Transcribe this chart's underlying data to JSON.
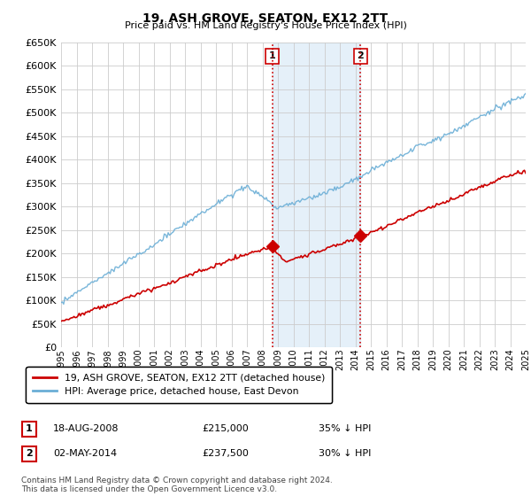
{
  "title": "19, ASH GROVE, SEATON, EX12 2TT",
  "subtitle": "Price paid vs. HM Land Registry's House Price Index (HPI)",
  "ytick_values": [
    0,
    50000,
    100000,
    150000,
    200000,
    250000,
    300000,
    350000,
    400000,
    450000,
    500000,
    550000,
    600000,
    650000
  ],
  "x_start_year": 1995,
  "x_end_year": 2025,
  "hpi_color": "#6aaed6",
  "price_color": "#cc0000",
  "marker1_date_label": "18-AUG-2008",
  "marker1_price": 215000,
  "marker1_pct": "35% ↓ HPI",
  "marker1_x": 2008.63,
  "marker2_date_label": "02-MAY-2014",
  "marker2_price": 237500,
  "marker2_pct": "30% ↓ HPI",
  "marker2_x": 2014.34,
  "legend_label1": "19, ASH GROVE, SEATON, EX12 2TT (detached house)",
  "legend_label2": "HPI: Average price, detached house, East Devon",
  "footnote": "Contains HM Land Registry data © Crown copyright and database right 2024.\nThis data is licensed under the Open Government Licence v3.0.",
  "background_color": "#ffffff",
  "plot_bg_color": "#ffffff",
  "grid_color": "#cccccc",
  "shade_color": "#daeaf7",
  "dashed_line_color": "#cc0000",
  "box_edge_color": "#cc0000"
}
